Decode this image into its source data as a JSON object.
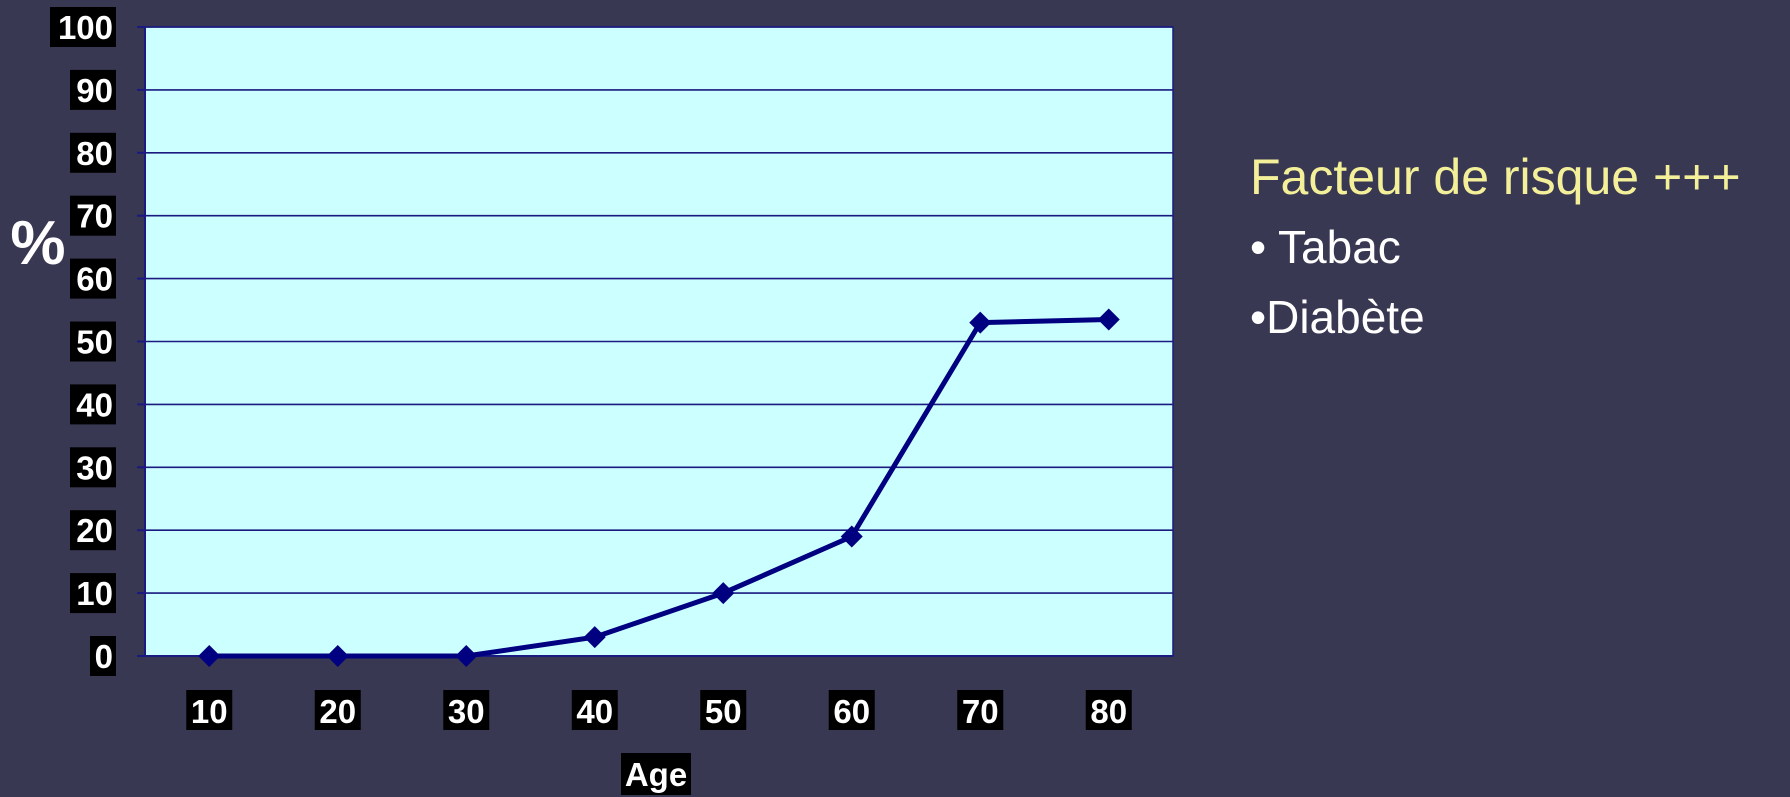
{
  "chart_data": {
    "type": "line",
    "title": "",
    "xlabel": "Age",
    "ylabel": "%",
    "categories": [
      "10",
      "20",
      "30",
      "40",
      "50",
      "60",
      "70",
      "80"
    ],
    "x": [
      10,
      20,
      30,
      40,
      50,
      60,
      70,
      80
    ],
    "values": [
      0,
      0,
      0,
      3,
      10,
      19,
      53,
      53.5
    ],
    "ylim": [
      0,
      100
    ],
    "yticks": [
      "0",
      "10",
      "20",
      "30",
      "40",
      "50",
      "60",
      "70",
      "80",
      "90",
      "100"
    ],
    "grid": true,
    "legend": "none",
    "colors": {
      "background": "#393853",
      "plot_area": "#ccffff",
      "gridline": "#1a1a80",
      "line": "#000080",
      "tick_label_bg": "#000000",
      "tick_label_text": "#ffffff"
    }
  },
  "sidebar": {
    "title": "Facteur de risque +++",
    "items": [
      "• Tabac",
      "•Diabète"
    ],
    "title_color": "#f4f09a",
    "item_color": "#ffffff"
  }
}
